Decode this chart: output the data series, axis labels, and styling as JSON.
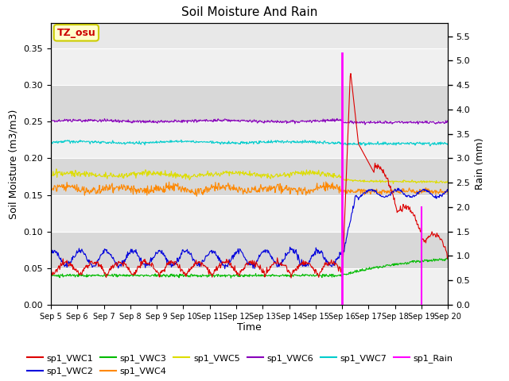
{
  "title": "Soil Moisture And Rain",
  "xlabel": "Time",
  "ylabel_left": "Soil Moisture (m3/m3)",
  "ylabel_right": "Rain (mm)",
  "ylim_left": [
    0.0,
    0.385
  ],
  "ylim_right": [
    0.0,
    5.775
  ],
  "xtick_labels": [
    "Sep 5",
    "Sep 6",
    "Sep 7",
    "Sep 8",
    "Sep 9",
    "Sep 10",
    "Sep 11",
    "Sep 12",
    "Sep 13",
    "Sep 14",
    "Sep 15",
    "Sep 16",
    "Sep 17",
    "Sep 18",
    "Sep 19",
    "Sep 20"
  ],
  "yticks_left": [
    0.0,
    0.05,
    0.1,
    0.15,
    0.2,
    0.25,
    0.3,
    0.35
  ],
  "yticks_right": [
    0.0,
    0.5,
    1.0,
    1.5,
    2.0,
    2.5,
    3.0,
    3.5,
    4.0,
    4.5,
    5.0,
    5.5
  ],
  "annotation_text": "TZ_osu",
  "annotation_fg": "#cc0000",
  "annotation_bg": "#ffffcc",
  "annotation_edge": "#cccc00",
  "plot_bg": "#e8e8e8",
  "band_colors": [
    "#f0f0f0",
    "#d8d8d8"
  ],
  "colors": {
    "VWC1": "#dd0000",
    "VWC2": "#0000dd",
    "VWC3": "#00bb00",
    "VWC4": "#ff8800",
    "VWC5": "#dddd00",
    "VWC6": "#8800bb",
    "VWC7": "#00cccc",
    "Rain": "#ff00ff"
  },
  "rain_day1": 11.0,
  "rain_val1": 5.15,
  "rain_day2": 14.0,
  "rain_val2": 2.0,
  "total_days": 15
}
